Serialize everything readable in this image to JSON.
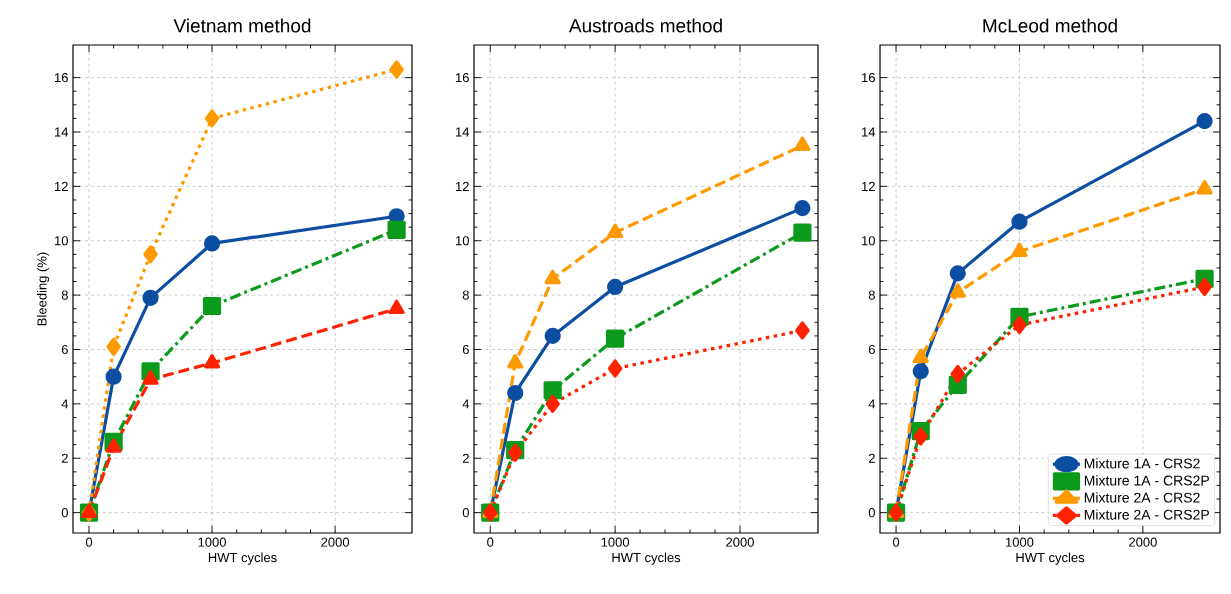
{
  "chart_data": [
    {
      "type": "line",
      "title": "Vietnam method",
      "xlabel": "HWT cycles",
      "ylabel": "Bleeding (%)",
      "x": [
        0,
        200,
        500,
        1000,
        2500
      ],
      "xlim": [
        -130,
        2625
      ],
      "ylim": [
        -0.75,
        17.2
      ],
      "xticks": [
        0,
        1000,
        2000
      ],
      "yticks": [
        0,
        2,
        4,
        6,
        8,
        10,
        12,
        14,
        16
      ],
      "grid": true,
      "legend": false,
      "series": [
        {
          "color": "#0c4ea2",
          "marker": "circle",
          "line_style": "solid",
          "values": [
            0,
            5.0,
            7.9,
            9.9,
            10.9
          ]
        },
        {
          "color": "#0c9a1c",
          "marker": "square",
          "line_style": "dashdot",
          "values": [
            0,
            2.6,
            5.2,
            7.6,
            10.4
          ]
        },
        {
          "color": "#ff9900",
          "marker": "diamond",
          "line_style": "dotted",
          "values": [
            0,
            6.1,
            9.5,
            14.5,
            16.3
          ]
        },
        {
          "color": "#ff2200",
          "marker": "triangle",
          "line_style": "dashed",
          "values": [
            0,
            2.4,
            4.9,
            5.5,
            7.5
          ]
        }
      ]
    },
    {
      "type": "line",
      "title": "Austroads method",
      "xlabel": "HWT cycles",
      "x": [
        0,
        200,
        500,
        1000,
        2500
      ],
      "xlim": [
        -130,
        2625
      ],
      "ylim": [
        -0.75,
        17.2
      ],
      "xticks": [
        0,
        1000,
        2000
      ],
      "yticks": [
        0,
        2,
        4,
        6,
        8,
        10,
        12,
        14,
        16
      ],
      "grid": true,
      "legend": false,
      "series": [
        {
          "color": "#0c4ea2",
          "marker": "circle",
          "line_style": "solid",
          "values": [
            0,
            4.4,
            6.5,
            8.3,
            11.2
          ]
        },
        {
          "color": "#0c9a1c",
          "marker": "square",
          "line_style": "dashdot",
          "values": [
            0,
            2.3,
            4.5,
            6.4,
            10.3
          ]
        },
        {
          "color": "#ff9900",
          "marker": "triangle",
          "line_style": "dashed",
          "values": [
            0,
            5.5,
            8.6,
            10.3,
            13.5
          ]
        },
        {
          "color": "#ff2200",
          "marker": "diamond",
          "line_style": "dotted",
          "values": [
            0,
            2.2,
            4.0,
            5.3,
            6.7
          ]
        }
      ]
    },
    {
      "type": "line",
      "title": "McLeod method",
      "xlabel": "HWT cycles",
      "x": [
        0,
        200,
        500,
        1000,
        2500
      ],
      "xlim": [
        -130,
        2625
      ],
      "ylim": [
        -0.75,
        17.2
      ],
      "xticks": [
        0,
        1000,
        2000
      ],
      "yticks": [
        0,
        2,
        4,
        6,
        8,
        10,
        12,
        14,
        16
      ],
      "grid": true,
      "legend": "bottom right",
      "series": [
        {
          "name": "Mixture 1A - CRS2",
          "color": "#0c4ea2",
          "marker": "circle",
          "line_style": "solid",
          "values": [
            0,
            5.2,
            8.8,
            10.7,
            14.4
          ]
        },
        {
          "name": "Mixture 1A - CRS2P",
          "color": "#0c9a1c",
          "marker": "square",
          "line_style": "dashdot",
          "values": [
            0,
            3.0,
            4.7,
            7.2,
            8.6
          ]
        },
        {
          "name": "Mixture 2A - CRS2",
          "color": "#ff9900",
          "marker": "triangle",
          "line_style": "dashed",
          "values": [
            0,
            5.7,
            8.1,
            9.6,
            11.9
          ]
        },
        {
          "name": "Mixture 2A - CRS2P",
          "color": "#ff2200",
          "marker": "diamond",
          "line_style": "dotted",
          "values": [
            0,
            2.8,
            5.1,
            6.9,
            8.3
          ]
        }
      ]
    }
  ]
}
